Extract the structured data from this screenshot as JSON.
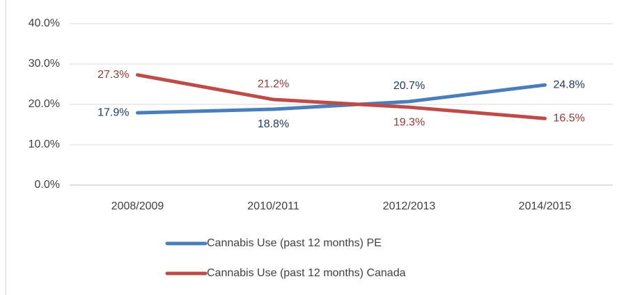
{
  "chart_data": {
    "type": "line",
    "categories": [
      "2008/2009",
      "2010/2011",
      "2012/2013",
      "2014/2015"
    ],
    "series": [
      {
        "name": "Cannabis Use (past 12 months) PE",
        "color": "#4a7ebb",
        "label_color": "#1f3864",
        "values": [
          17.9,
          18.8,
          20.7,
          24.8
        ],
        "value_labels": [
          "17.9%",
          "18.8%",
          "20.7%",
          "24.8%"
        ]
      },
      {
        "name": "Cannabis Use (past 12 months) Canada",
        "color": "#be4b48",
        "label_color": "#953735",
        "values": [
          27.3,
          21.2,
          19.3,
          16.5
        ],
        "value_labels": [
          "27.3%",
          "21.2%",
          "19.3%",
          "16.5%"
        ]
      }
    ],
    "ylim": [
      0,
      40
    ],
    "yticks": [
      {
        "value": 0,
        "label": "0.0%"
      },
      {
        "value": 10,
        "label": "10.0%"
      },
      {
        "value": 20,
        "label": "20.0%"
      },
      {
        "value": 30,
        "label": "30.0%"
      },
      {
        "value": 40,
        "label": "40.0%"
      }
    ],
    "grid": true
  }
}
